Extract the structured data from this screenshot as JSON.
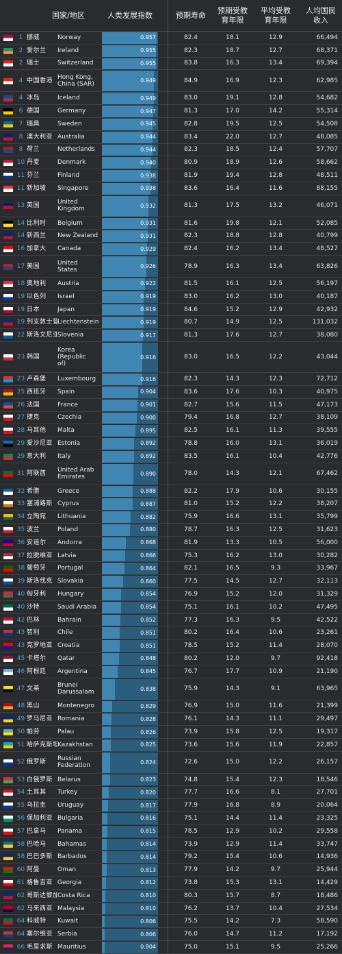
{
  "header": {
    "country": "国家/地区",
    "hdi": "人类发展指数",
    "life_expectancy": "预期寿命",
    "expected_years": "预期受教\n育年限",
    "mean_years": "平均受教\n育年限",
    "gni": "人均国民\n收入"
  },
  "rows": [
    {
      "rank": "1",
      "cn": "挪威",
      "en": "Norway",
      "hdi": "0.957",
      "le": "82.4",
      "ey": "18.1",
      "my": "12.9",
      "gni": "66,494",
      "flag": "#ba0c2f",
      "flag2": "#ffffff"
    },
    {
      "rank": "2",
      "cn": "爱尔兰",
      "en": "Ireland",
      "hdi": "0.955",
      "le": "82.3",
      "ey": "18.7",
      "my": "12.7",
      "gni": "68,371",
      "flag": "#169b62",
      "flag2": "#ff883e"
    },
    {
      "rank": "2",
      "cn": "瑞士",
      "en": "Switzerland",
      "hdi": "0.955",
      "le": "83.8",
      "ey": "16.3",
      "my": "13.4",
      "gni": "69,394",
      "flag": "#d52b1e",
      "flag2": "#ffffff"
    },
    {
      "rank": "4",
      "cn": "中国香港",
      "en": "Hong Kong, China (SAR)",
      "hdi": "0.949",
      "le": "84.9",
      "ey": "16.9",
      "my": "12.3",
      "gni": "62,985",
      "flag": "#de2910",
      "flag2": "#ffffff"
    },
    {
      "rank": "4",
      "cn": "冰岛",
      "en": "Iceland",
      "hdi": "0.949",
      "le": "83.0",
      "ey": "19.1",
      "my": "12.8",
      "gni": "54,682",
      "flag": "#02529c",
      "flag2": "#dc1e35"
    },
    {
      "rank": "6",
      "cn": "德国",
      "en": "Germany",
      "hdi": "0.947",
      "le": "81.3",
      "ey": "17.0",
      "my": "14.2",
      "gni": "55,314",
      "flag": "#000000",
      "flag2": "#ffce00"
    },
    {
      "rank": "7",
      "cn": "瑞典",
      "en": "Sweden",
      "hdi": "0.945",
      "le": "82.8",
      "ey": "19.5",
      "my": "12.5",
      "gni": "54,508",
      "flag": "#006aa7",
      "flag2": "#fecc00"
    },
    {
      "rank": "8",
      "cn": "澳大利亚",
      "en": "Australia",
      "hdi": "0.944",
      "le": "83.4",
      "ey": "22.0",
      "my": "12.7",
      "gni": "48,085",
      "flag": "#00247d",
      "flag2": "#cf142b"
    },
    {
      "rank": "8",
      "cn": "荷兰",
      "en": "Netherlands",
      "hdi": "0.944",
      "le": "82.3",
      "ey": "18.5",
      "my": "12.4",
      "gni": "57,707",
      "flag": "#ae1c28",
      "flag2": "#21468b"
    },
    {
      "rank": "10",
      "cn": "丹麦",
      "en": "Denmark",
      "hdi": "0.940",
      "le": "80.9",
      "ey": "18.9",
      "my": "12.6",
      "gni": "58,662",
      "flag": "#c8102e",
      "flag2": "#ffffff"
    },
    {
      "rank": "11",
      "cn": "芬兰",
      "en": "Finland",
      "hdi": "0.938",
      "le": "81.9",
      "ey": "19.4",
      "my": "12.8",
      "gni": "48,511",
      "flag": "#ffffff",
      "flag2": "#003580"
    },
    {
      "rank": "11",
      "cn": "新加坡",
      "en": "Singapore",
      "hdi": "0.938",
      "le": "83.6",
      "ey": "16.4",
      "my": "11.6",
      "gni": "88,155",
      "flag": "#ef3340",
      "flag2": "#ffffff"
    },
    {
      "rank": "13",
      "cn": "英国",
      "en": "United Kingdom",
      "hdi": "0.932",
      "le": "81.3",
      "ey": "17.5",
      "my": "13.2",
      "gni": "46,071",
      "flag": "#012169",
      "flag2": "#c8102e"
    },
    {
      "rank": "14",
      "cn": "比利时",
      "en": "Belgium",
      "hdi": "0.931",
      "le": "81.6",
      "ey": "19.8",
      "my": "12.1",
      "gni": "52,085",
      "flag": "#000000",
      "flag2": "#fdda24"
    },
    {
      "rank": "14",
      "cn": "新西兰",
      "en": "New Zealand",
      "hdi": "0.931",
      "le": "82.3",
      "ey": "18.8",
      "my": "12.8",
      "gni": "40,799",
      "flag": "#00247d",
      "flag2": "#cc142b"
    },
    {
      "rank": "16",
      "cn": "加拿大",
      "en": "Canada",
      "hdi": "0.929",
      "le": "82.4",
      "ey": "16.2",
      "my": "13.4",
      "gni": "48,527",
      "flag": "#ff0000",
      "flag2": "#ffffff"
    },
    {
      "rank": "17",
      "cn": "美国",
      "en": "United States",
      "hdi": "0.926",
      "le": "78.9",
      "ey": "16.3",
      "my": "13.4",
      "gni": "63,826",
      "flag": "#b22234",
      "flag2": "#3c3b6e"
    },
    {
      "rank": "18",
      "cn": "奥地利",
      "en": "Austria",
      "hdi": "0.922",
      "le": "81.5",
      "ey": "16.1",
      "my": "12.5",
      "gni": "56,197",
      "flag": "#ed2939",
      "flag2": "#ffffff"
    },
    {
      "rank": "19",
      "cn": "以色列",
      "en": "Israel",
      "hdi": "0.919",
      "le": "83.0",
      "ey": "16.2",
      "my": "13.0",
      "gni": "40,187",
      "flag": "#ffffff",
      "flag2": "#0038b8"
    },
    {
      "rank": "19",
      "cn": "日本",
      "en": "Japan",
      "hdi": "0.919",
      "le": "84.6",
      "ey": "15.2",
      "my": "12.9",
      "gni": "42,932",
      "flag": "#ffffff",
      "flag2": "#bc002d"
    },
    {
      "rank": "19",
      "cn": "列支敦士登",
      "en": "Liechtenstein",
      "hdi": "0.919",
      "le": "80.7",
      "ey": "14.9",
      "my": "12.5",
      "gni": "131,032",
      "flag": "#002b7f",
      "flag2": "#ce1126"
    },
    {
      "rank": "22",
      "cn": "斯洛文尼亚",
      "en": "Slovenia",
      "hdi": "0.917",
      "le": "81.3",
      "ey": "17.6",
      "my": "12.7",
      "gni": "38,080",
      "flag": "#ffffff",
      "flag2": "#005da4"
    },
    {
      "rank": "23",
      "cn": "韩国",
      "en": "Korea (Republic of)",
      "hdi": "0.916",
      "le": "83.0",
      "ey": "16.5",
      "my": "12.2",
      "gni": "43,044",
      "flag": "#ffffff",
      "flag2": "#cd2e3a"
    },
    {
      "rank": "23",
      "cn": "卢森堡",
      "en": "Luxembourg",
      "hdi": "0.916",
      "le": "82.3",
      "ey": "14.3",
      "my": "12.3",
      "gni": "72,712",
      "flag": "#ed2939",
      "flag2": "#00a1de"
    },
    {
      "rank": "25",
      "cn": "西班牙",
      "en": "Spain",
      "hdi": "0.904",
      "le": "83.6",
      "ey": "17.6",
      "my": "10.3",
      "gni": "40,975",
      "flag": "#aa151b",
      "flag2": "#f1bf00"
    },
    {
      "rank": "26",
      "cn": "法国",
      "en": "France",
      "hdi": "0.901",
      "le": "82.7",
      "ey": "15.6",
      "my": "11.5",
      "gni": "47,173",
      "flag": "#0055a4",
      "flag2": "#ef4135"
    },
    {
      "rank": "27",
      "cn": "捷克",
      "en": "Czechia",
      "hdi": "0.900",
      "le": "79.4",
      "ey": "16.8",
      "my": "12.7",
      "gni": "38,109",
      "flag": "#ffffff",
      "flag2": "#d7141a"
    },
    {
      "rank": "28",
      "cn": "马耳他",
      "en": "Malta",
      "hdi": "0.895",
      "le": "82.5",
      "ey": "16.1",
      "my": "11.3",
      "gni": "39,555",
      "flag": "#ffffff",
      "flag2": "#cf142b"
    },
    {
      "rank": "29",
      "cn": "爱沙尼亚",
      "en": "Estonia",
      "hdi": "0.892",
      "le": "78.8",
      "ey": "16.0",
      "my": "13.1",
      "gni": "36,019",
      "flag": "#0072ce",
      "flag2": "#000000"
    },
    {
      "rank": "29",
      "cn": "意大利",
      "en": "Italy",
      "hdi": "0.892",
      "le": "83.5",
      "ey": "16.1",
      "my": "10.4",
      "gni": "42,776",
      "flag": "#009246",
      "flag2": "#ce2b37"
    },
    {
      "rank": "31",
      "cn": "阿联酋",
      "en": "United Arab Emirates",
      "hdi": "0.890",
      "le": "78.0",
      "ey": "14.3",
      "my": "12.1",
      "gni": "67,462",
      "flag": "#00732f",
      "flag2": "#ff0000"
    },
    {
      "rank": "32",
      "cn": "希腊",
      "en": "Greece",
      "hdi": "0.888",
      "le": "82.2",
      "ey": "17.9",
      "my": "10.6",
      "gni": "30,155",
      "flag": "#0d5eaf",
      "flag2": "#ffffff"
    },
    {
      "rank": "33",
      "cn": "塞浦路斯",
      "en": "Cyprus",
      "hdi": "0.887",
      "le": "81.0",
      "ey": "15.2",
      "my": "12.2",
      "gni": "38,207",
      "flag": "#ffffff",
      "flag2": "#d57800"
    },
    {
      "rank": "34",
      "cn": "立陶宛",
      "en": "Lithuania",
      "hdi": "0.882",
      "le": "75.9",
      "ey": "16.6",
      "my": "13.1",
      "gni": "35,799",
      "flag": "#fdb913",
      "flag2": "#006a44"
    },
    {
      "rank": "35",
      "cn": "波兰",
      "en": "Poland",
      "hdi": "0.880",
      "le": "78.7",
      "ey": "16.3",
      "my": "12.5",
      "gni": "31,623",
      "flag": "#ffffff",
      "flag2": "#dc143c"
    },
    {
      "rank": "36",
      "cn": "安道尔",
      "en": "Andorra",
      "hdi": "0.868",
      "le": "81.9",
      "ey": "13.3",
      "my": "10.5",
      "gni": "56,000",
      "flag": "#10069f",
      "flag2": "#d50032"
    },
    {
      "rank": "37",
      "cn": "拉脱维亚",
      "en": "Latvia",
      "hdi": "0.866",
      "le": "75.3",
      "ey": "16.2",
      "my": "13.0",
      "gni": "30,282",
      "flag": "#9e3039",
      "flag2": "#ffffff"
    },
    {
      "rank": "38",
      "cn": "葡萄牙",
      "en": "Portugal",
      "hdi": "0.864",
      "le": "82.1",
      "ey": "16.5",
      "my": "9.3",
      "gni": "33,967",
      "flag": "#006600",
      "flag2": "#ff0000"
    },
    {
      "rank": "39",
      "cn": "斯洛伐克",
      "en": "Slovakia",
      "hdi": "0.860",
      "le": "77.5",
      "ey": "14.5",
      "my": "12.7",
      "gni": "32,113",
      "flag": "#ffffff",
      "flag2": "#0b4ea2"
    },
    {
      "rank": "40",
      "cn": "匈牙利",
      "en": "Hungary",
      "hdi": "0.854",
      "le": "76.9",
      "ey": "15.2",
      "my": "12.0",
      "gni": "31,329",
      "flag": "#cd2a3e",
      "flag2": "#436f4d"
    },
    {
      "rank": "40",
      "cn": "沙特",
      "en": "Saudi Arabia",
      "hdi": "0.854",
      "le": "75.1",
      "ey": "16.1",
      "my": "10.2",
      "gni": "47,495",
      "flag": "#006c35",
      "flag2": "#ffffff"
    },
    {
      "rank": "42",
      "cn": "巴林",
      "en": "Bahrain",
      "hdi": "0.852",
      "le": "77.3",
      "ey": "16.3",
      "my": "9.5",
      "gni": "42,522",
      "flag": "#ce1126",
      "flag2": "#ffffff"
    },
    {
      "rank": "43",
      "cn": "智利",
      "en": "Chile",
      "hdi": "0.851",
      "le": "80.2",
      "ey": "16.4",
      "my": "10.6",
      "gni": "23,261",
      "flag": "#d52b1e",
      "flag2": "#0039a6"
    },
    {
      "rank": "43",
      "cn": "克罗地亚",
      "en": "Croatia",
      "hdi": "0.851",
      "le": "78.5",
      "ey": "15.2",
      "my": "11.4",
      "gni": "28,070",
      "flag": "#ff0000",
      "flag2": "#171796"
    },
    {
      "rank": "45",
      "cn": "卡塔尔",
      "en": "Qatar",
      "hdi": "0.848",
      "le": "80.2",
      "ey": "12.0",
      "my": "9.7",
      "gni": "92,418",
      "flag": "#8a1538",
      "flag2": "#ffffff"
    },
    {
      "rank": "46",
      "cn": "阿根廷",
      "en": "Argentina",
      "hdi": "0.845",
      "le": "76.7",
      "ey": "17.7",
      "my": "10.9",
      "gni": "21,190",
      "flag": "#74acdf",
      "flag2": "#ffffff"
    },
    {
      "rank": "47",
      "cn": "文莱",
      "en": "Brunei Darussalam",
      "hdi": "0.838",
      "le": "75.9",
      "ey": "14.3",
      "my": "9.1",
      "gni": "63,965",
      "flag": "#f7e017",
      "flag2": "#000000"
    },
    {
      "rank": "48",
      "cn": "黑山",
      "en": "Montenegro",
      "hdi": "0.829",
      "le": "76.9",
      "ey": "15.0",
      "my": "11.6",
      "gni": "21,399",
      "flag": "#c40308",
      "flag2": "#d3ae3b"
    },
    {
      "rank": "49",
      "cn": "罗马尼亚",
      "en": "Romania",
      "hdi": "0.828",
      "le": "76.1",
      "ey": "14.3",
      "my": "11.1",
      "gni": "29,497",
      "flag": "#002b7f",
      "flag2": "#fcd116"
    },
    {
      "rank": "50",
      "cn": "帕劳",
      "en": "Palau",
      "hdi": "0.826",
      "le": "73.9",
      "ey": "15.8",
      "my": "12.5",
      "gni": "19,317",
      "flag": "#4aadd6",
      "flag2": "#ffde00"
    },
    {
      "rank": "51",
      "cn": "哈萨克斯坦",
      "en": "Kazakhstan",
      "hdi": "0.825",
      "le": "73.6",
      "ey": "15.6",
      "my": "11.9",
      "gni": "22,857",
      "flag": "#00afca",
      "flag2": "#fec50c"
    },
    {
      "rank": "52",
      "cn": "俄罗斯",
      "en": "Russian Federation",
      "hdi": "0.824",
      "le": "72.6",
      "ey": "15.0",
      "my": "12.2",
      "gni": "26,157",
      "flag": "#ffffff",
      "flag2": "#0039a6"
    },
    {
      "rank": "53",
      "cn": "白俄罗斯",
      "en": "Belarus",
      "hdi": "0.823",
      "le": "74.8",
      "ey": "15.4",
      "my": "12.3",
      "gni": "18,546",
      "flag": "#c8313e",
      "flag2": "#4aa657"
    },
    {
      "rank": "54",
      "cn": "土耳其",
      "en": "Turkey",
      "hdi": "0.820",
      "le": "77.7",
      "ey": "16.6",
      "my": "8.1",
      "gni": "27,701",
      "flag": "#e30a17",
      "flag2": "#ffffff"
    },
    {
      "rank": "55",
      "cn": "乌拉圭",
      "en": "Uruguay",
      "hdi": "0.817",
      "le": "77.9",
      "ey": "16.8",
      "my": "8.9",
      "gni": "20,064",
      "flag": "#ffffff",
      "flag2": "#0038a8"
    },
    {
      "rank": "56",
      "cn": "保加利亚",
      "en": "Bulgaria",
      "hdi": "0.816",
      "le": "75.1",
      "ey": "14.4",
      "my": "11.4",
      "gni": "23,325",
      "flag": "#ffffff",
      "flag2": "#00966e"
    },
    {
      "rank": "57",
      "cn": "巴拿马",
      "en": "Panama",
      "hdi": "0.815",
      "le": "78.5",
      "ey": "12.9",
      "my": "10.2",
      "gni": "29,558",
      "flag": "#ffffff",
      "flag2": "#da121a"
    },
    {
      "rank": "58",
      "cn": "巴哈马",
      "en": "Bahamas",
      "hdi": "0.814",
      "le": "73.9",
      "ey": "12.9",
      "my": "11.4",
      "gni": "33,747",
      "flag": "#00778b",
      "flag2": "#ffc72c"
    },
    {
      "rank": "58",
      "cn": "巴巴多斯",
      "en": "Barbados",
      "hdi": "0.814",
      "le": "79.2",
      "ey": "15.4",
      "my": "10.6",
      "gni": "14,936",
      "flag": "#00267f",
      "flag2": "#ffc726"
    },
    {
      "rank": "60",
      "cn": "阿曼",
      "en": "Oman",
      "hdi": "0.813",
      "le": "77.9",
      "ey": "14.2",
      "my": "9.7",
      "gni": "25,944",
      "flag": "#db161b",
      "flag2": "#008000"
    },
    {
      "rank": "61",
      "cn": "格鲁吉亚",
      "en": "Georgia",
      "hdi": "0.812",
      "le": "73.8",
      "ey": "15.3",
      "my": "13.1",
      "gni": "14,429",
      "flag": "#ffffff",
      "flag2": "#ff0000"
    },
    {
      "rank": "62",
      "cn": "哥斯达黎加",
      "en": "Costa Rica",
      "hdi": "0.810",
      "le": "80.3",
      "ey": "15.7",
      "my": "8.7",
      "gni": "18,486",
      "flag": "#002b7f",
      "flag2": "#ce1126"
    },
    {
      "rank": "62",
      "cn": "马来西亚",
      "en": "Malaysia",
      "hdi": "0.810",
      "le": "76.2",
      "ey": "13.7",
      "my": "10.4",
      "gni": "27,534",
      "flag": "#cc0001",
      "flag2": "#010066"
    },
    {
      "rank": "64",
      "cn": "科威特",
      "en": "Kuwait",
      "hdi": "0.806",
      "le": "75.5",
      "ey": "14.2",
      "my": "7.3",
      "gni": "58,590",
      "flag": "#007a3d",
      "flag2": "#ce1126"
    },
    {
      "rank": "64",
      "cn": "塞尔维亚",
      "en": "Serbia",
      "hdi": "0.806",
      "le": "76.0",
      "ey": "14.7",
      "my": "11.2",
      "gni": "17,192",
      "flag": "#c6363c",
      "flag2": "#0c4076"
    },
    {
      "rank": "66",
      "cn": "毛里求斯",
      "en": "Mauritius",
      "hdi": "0.804",
      "le": "75.0",
      "ey": "15.1",
      "my": "9.5",
      "gni": "25,266",
      "flag": "#ea2839",
      "flag2": "#1a206d"
    }
  ]
}
